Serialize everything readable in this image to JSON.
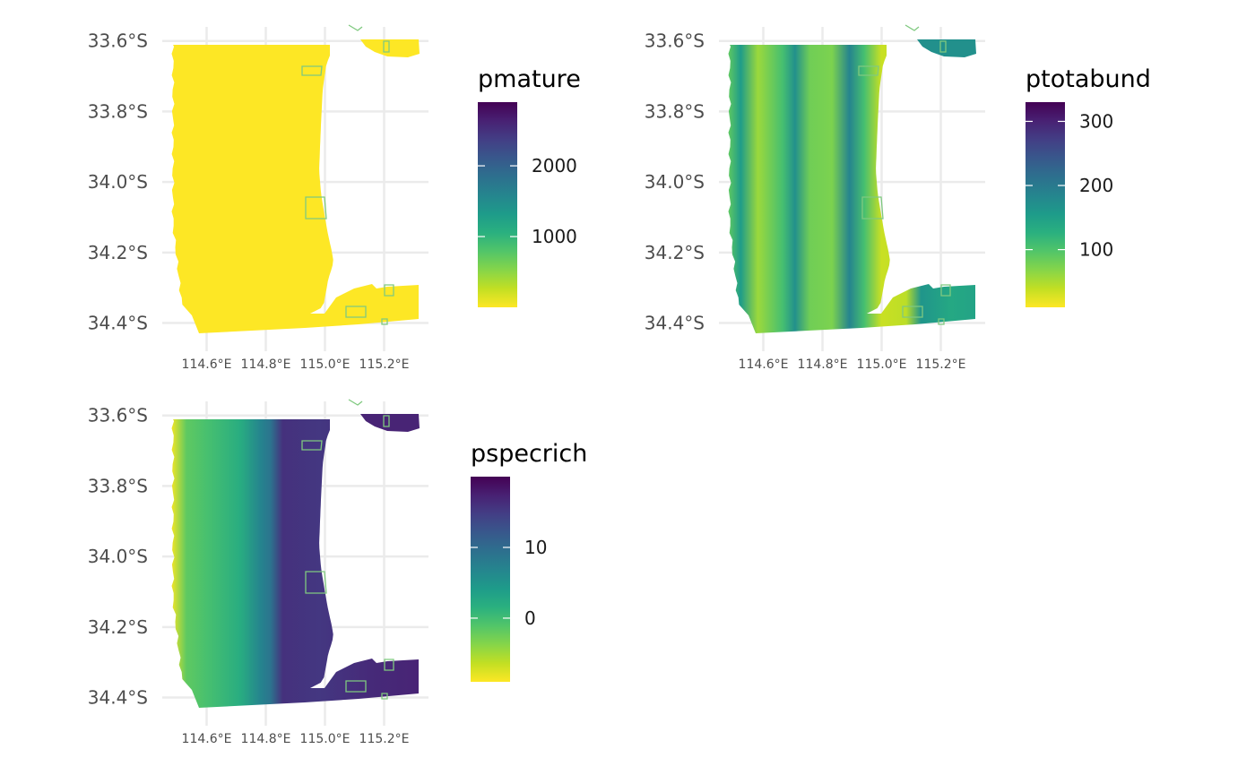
{
  "chart_data": [
    {
      "type": "heatmap",
      "legend_title": "pmature",
      "x_ticks": [
        114.6,
        114.8,
        115.0,
        115.2
      ],
      "x_tick_labels": [
        "114.6°E",
        "114.8°E",
        "115.0°E",
        "115.2°E"
      ],
      "y_ticks": [
        -33.6,
        -33.8,
        -34.0,
        -34.2,
        -34.4
      ],
      "y_tick_labels": [
        "33.6°S",
        "33.8°S",
        "34.0°S",
        "34.2°S",
        "34.4°S"
      ],
      "xlim": [
        114.45,
        115.35
      ],
      "ylim": [
        -34.48,
        -33.56
      ],
      "legend_ticks": [
        1000,
        2000
      ],
      "legend_tick_labels": [
        "1000",
        "2000"
      ],
      "legend_range": [
        0,
        2900
      ],
      "value_pattern": "uniform",
      "value_range": [
        0,
        60
      ]
    },
    {
      "type": "heatmap",
      "legend_title": "ptotabund",
      "x_ticks": [
        114.6,
        114.8,
        115.0,
        115.2
      ],
      "x_tick_labels": [
        "114.6°E",
        "114.8°E",
        "115.0°E",
        "115.2°E"
      ],
      "y_ticks": [
        -33.6,
        -33.8,
        -34.0,
        -34.2,
        -34.4
      ],
      "y_tick_labels": [
        "33.6°S",
        "33.8°S",
        "34.0°S",
        "34.2°S",
        "34.4°S"
      ],
      "xlim": [
        114.45,
        115.35
      ],
      "ylim": [
        -34.48,
        -33.56
      ],
      "legend_ticks": [
        100,
        200,
        300
      ],
      "legend_tick_labels": [
        "100",
        "200",
        "300"
      ],
      "legend_range": [
        10,
        330
      ],
      "value_pattern": "bands",
      "value_range": [
        20,
        230
      ]
    },
    {
      "type": "heatmap",
      "legend_title": "pspecrich",
      "x_ticks": [
        114.6,
        114.8,
        115.0,
        115.2
      ],
      "x_tick_labels": [
        "114.6°E",
        "114.8°E",
        "115.0°E",
        "115.2°E"
      ],
      "y_ticks": [
        -33.6,
        -33.8,
        -34.0,
        -34.2,
        -34.4
      ],
      "y_tick_labels": [
        "33.6°S",
        "33.8°S",
        "34.0°S",
        "34.2°S",
        "34.4°S"
      ],
      "xlim": [
        114.45,
        115.35
      ],
      "ylim": [
        -34.48,
        -33.56
      ],
      "legend_ticks": [
        0,
        10
      ],
      "legend_tick_labels": [
        "0",
        "10"
      ],
      "legend_range": [
        -9,
        20
      ],
      "value_pattern": "gradient",
      "value_range": [
        -8,
        19
      ]
    }
  ],
  "colors": {
    "viridis": [
      "#fde725",
      "#c2df23",
      "#86d549",
      "#52c569",
      "#2ab07f",
      "#1e9b8a",
      "#25858e",
      "#2d708e",
      "#38588c",
      "#433e85",
      "#482173",
      "#440154"
    ],
    "mpa_outline": "#7fc97f",
    "grid": "#ebebeb",
    "background": "#ffffff"
  }
}
